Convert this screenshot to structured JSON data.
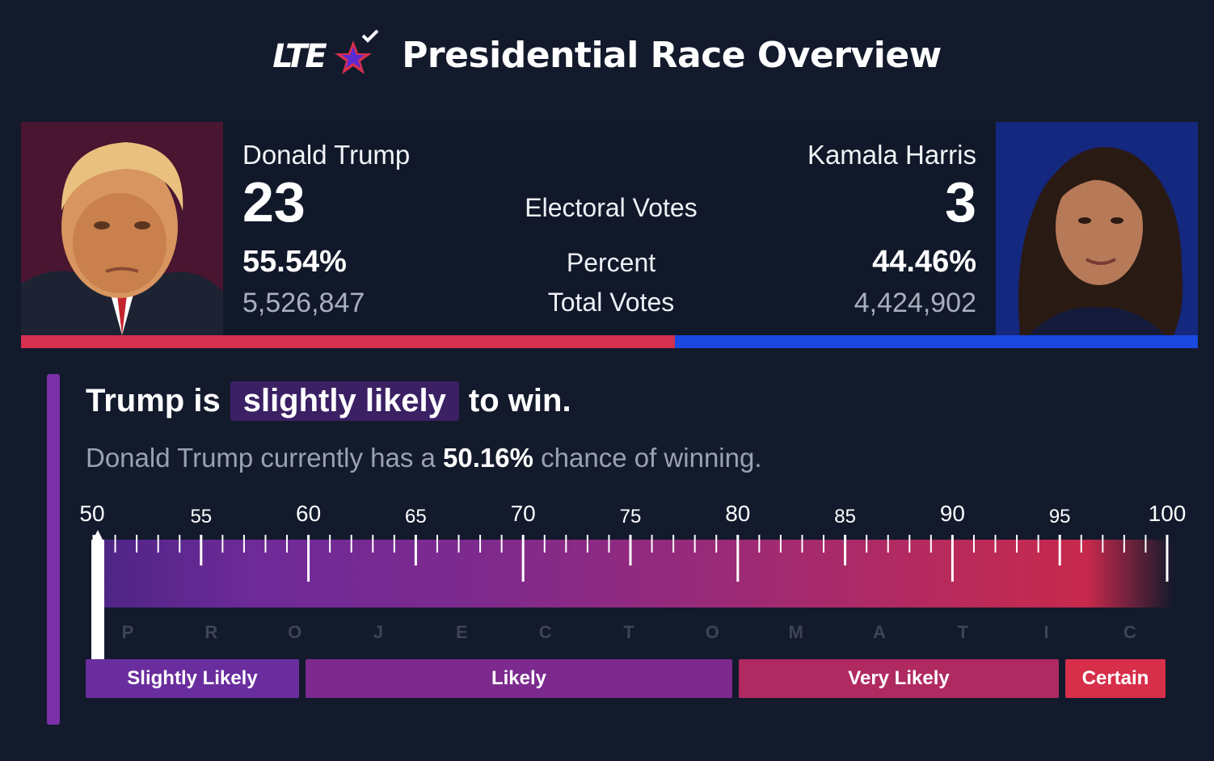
{
  "header": {
    "logo_text": "LTE",
    "title": "Presidential Race Overview"
  },
  "candidates": {
    "left": {
      "name": "Donald Trump",
      "electoral_votes": "23",
      "percent": "55.54%",
      "total_votes": "5,526,847",
      "photo_icon": "trump-portrait",
      "color": "#d4304f"
    },
    "right": {
      "name": "Kamala Harris",
      "electoral_votes": "3",
      "percent": "44.46%",
      "total_votes": "4,424,902",
      "photo_icon": "harris-portrait",
      "color": "#1a48e0"
    }
  },
  "labels": {
    "electoral_votes": "Electoral Votes",
    "percent": "Percent",
    "total_votes": "Total Votes"
  },
  "split": {
    "left_fraction": 0.5554
  },
  "projection": {
    "headline_pre": "Trump is",
    "headline_highlight": "slightly likely",
    "headline_post": "to win.",
    "sub_pre": "Donald Trump currently has a ",
    "sub_value": "50.16%",
    "sub_post": " chance of winning.",
    "chance": 50.16,
    "scale_min": 50,
    "scale_max": 100,
    "tick_labels": [
      "50",
      "55",
      "60",
      "65",
      "70",
      "75",
      "80",
      "85",
      "90",
      "95",
      "100"
    ],
    "watermark_letters": [
      "P",
      "R",
      "O",
      "J",
      "E",
      "C",
      "T",
      "O",
      "M",
      "A",
      "T",
      "I",
      "C"
    ],
    "ranges": [
      {
        "label": "Slightly Likely",
        "from": 50,
        "to": 60,
        "color": "#6a2d9e"
      },
      {
        "label": "Likely",
        "from": 60,
        "to": 80,
        "color": "#7c2a8e"
      },
      {
        "label": "Very Likely",
        "from": 80,
        "to": 95,
        "color": "#b02a62"
      },
      {
        "label": "Certain",
        "from": 95,
        "to": 100,
        "color": "#d72e4a"
      }
    ]
  }
}
